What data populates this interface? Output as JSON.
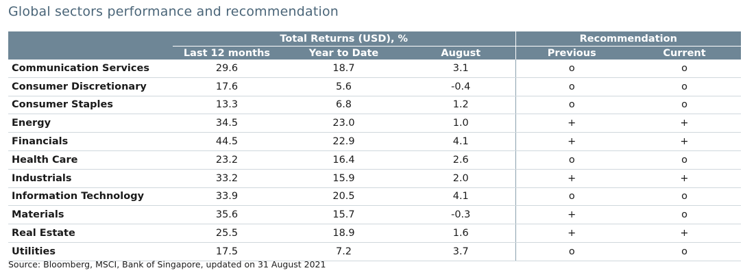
{
  "title": "Global sectors performance and recommendation",
  "header": {
    "group_returns": "Total Returns (USD), %",
    "group_recommendation": "Recommendation",
    "columns": [
      "Last 12 months",
      "Year to Date",
      "August",
      "Previous",
      "Current"
    ]
  },
  "rows": [
    {
      "sector": "Communication Services",
      "l12m": "29.6",
      "ytd": "18.7",
      "aug": "3.1",
      "prev": "o",
      "curr": "o"
    },
    {
      "sector": "Consumer Discretionary",
      "l12m": "17.6",
      "ytd": "5.6",
      "aug": "-0.4",
      "prev": "o",
      "curr": "o"
    },
    {
      "sector": "Consumer Staples",
      "l12m": "13.3",
      "ytd": "6.8",
      "aug": "1.2",
      "prev": "o",
      "curr": "o"
    },
    {
      "sector": "Energy",
      "l12m": "34.5",
      "ytd": "23.0",
      "aug": "1.0",
      "prev": "+",
      "curr": "+"
    },
    {
      "sector": "Financials",
      "l12m": "44.5",
      "ytd": "22.9",
      "aug": "4.1",
      "prev": "+",
      "curr": "+"
    },
    {
      "sector": "Health Care",
      "l12m": "23.2",
      "ytd": "16.4",
      "aug": "2.6",
      "prev": "o",
      "curr": "o"
    },
    {
      "sector": "Industrials",
      "l12m": "33.2",
      "ytd": "15.9",
      "aug": "2.0",
      "prev": "+",
      "curr": "+"
    },
    {
      "sector": "Information Technology",
      "l12m": "33.9",
      "ytd": "20.5",
      "aug": "4.1",
      "prev": "o",
      "curr": "o"
    },
    {
      "sector": "Materials",
      "l12m": "35.6",
      "ytd": "15.7",
      "aug": "-0.3",
      "prev": "+",
      "curr": "o"
    },
    {
      "sector": "Real Estate",
      "l12m": "25.5",
      "ytd": "18.9",
      "aug": "1.6",
      "prev": "+",
      "curr": "+"
    },
    {
      "sector": "Utilities",
      "l12m": "17.5",
      "ytd": "7.2",
      "aug": "3.7",
      "prev": "o",
      "curr": "o"
    }
  ],
  "source": "Source: Bloomberg, MSCI, Bank of Singapore, updated on 31 August 2021",
  "colors": {
    "header_bg": "#6e8696",
    "title": "#4a6578",
    "row_border": "#cfd7dc"
  }
}
